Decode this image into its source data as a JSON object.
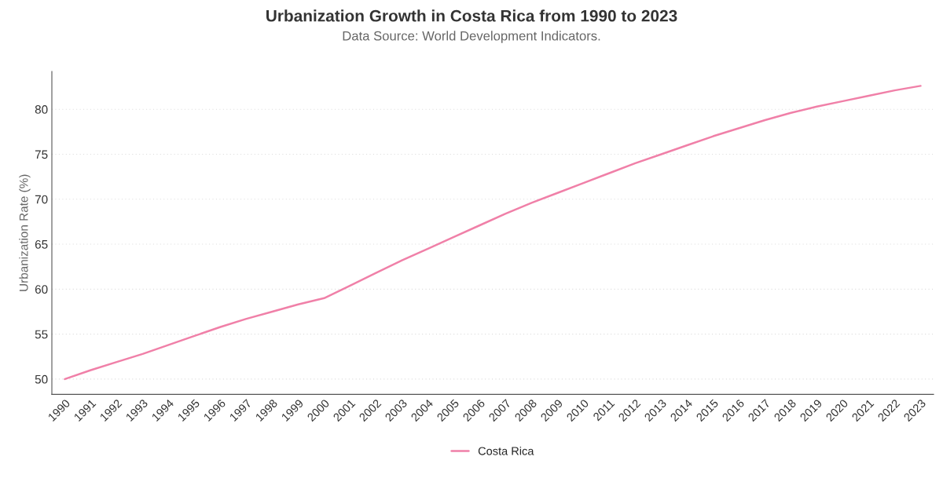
{
  "chart_data": {
    "type": "line",
    "title": "Urbanization Growth in Costa Rica from 1990 to 2023",
    "subtitle": "Data Source: World Development Indicators.",
    "ylabel": "Urbanization Rate (%)",
    "categories": [
      "1990",
      "1991",
      "1992",
      "1993",
      "1994",
      "1995",
      "1996",
      "1997",
      "1998",
      "1999",
      "2000",
      "2001",
      "2002",
      "2003",
      "2004",
      "2005",
      "2006",
      "2007",
      "2008",
      "2009",
      "2010",
      "2011",
      "2012",
      "2013",
      "2014",
      "2015",
      "2016",
      "2017",
      "2018",
      "2019",
      "2020",
      "2021",
      "2022",
      "2023"
    ],
    "series": [
      {
        "name": "Costa Rica",
        "color": "#f080a8",
        "values": [
          50.0,
          51.0,
          51.9,
          52.8,
          53.8,
          54.8,
          55.8,
          56.7,
          57.5,
          58.3,
          59.0,
          60.4,
          61.8,
          63.2,
          64.5,
          65.8,
          67.1,
          68.4,
          69.6,
          70.7,
          71.8,
          72.9,
          74.0,
          75.0,
          76.0,
          77.0,
          77.9,
          78.8,
          79.6,
          80.3,
          80.9,
          81.5,
          82.1,
          82.6
        ]
      }
    ],
    "ylim": [
      48.3,
      84.2
    ],
    "yticks": [
      50,
      55,
      60,
      65,
      70,
      75,
      80
    ],
    "grid": "y",
    "legend": "bottom",
    "marker": "none",
    "line_style": "solid"
  }
}
